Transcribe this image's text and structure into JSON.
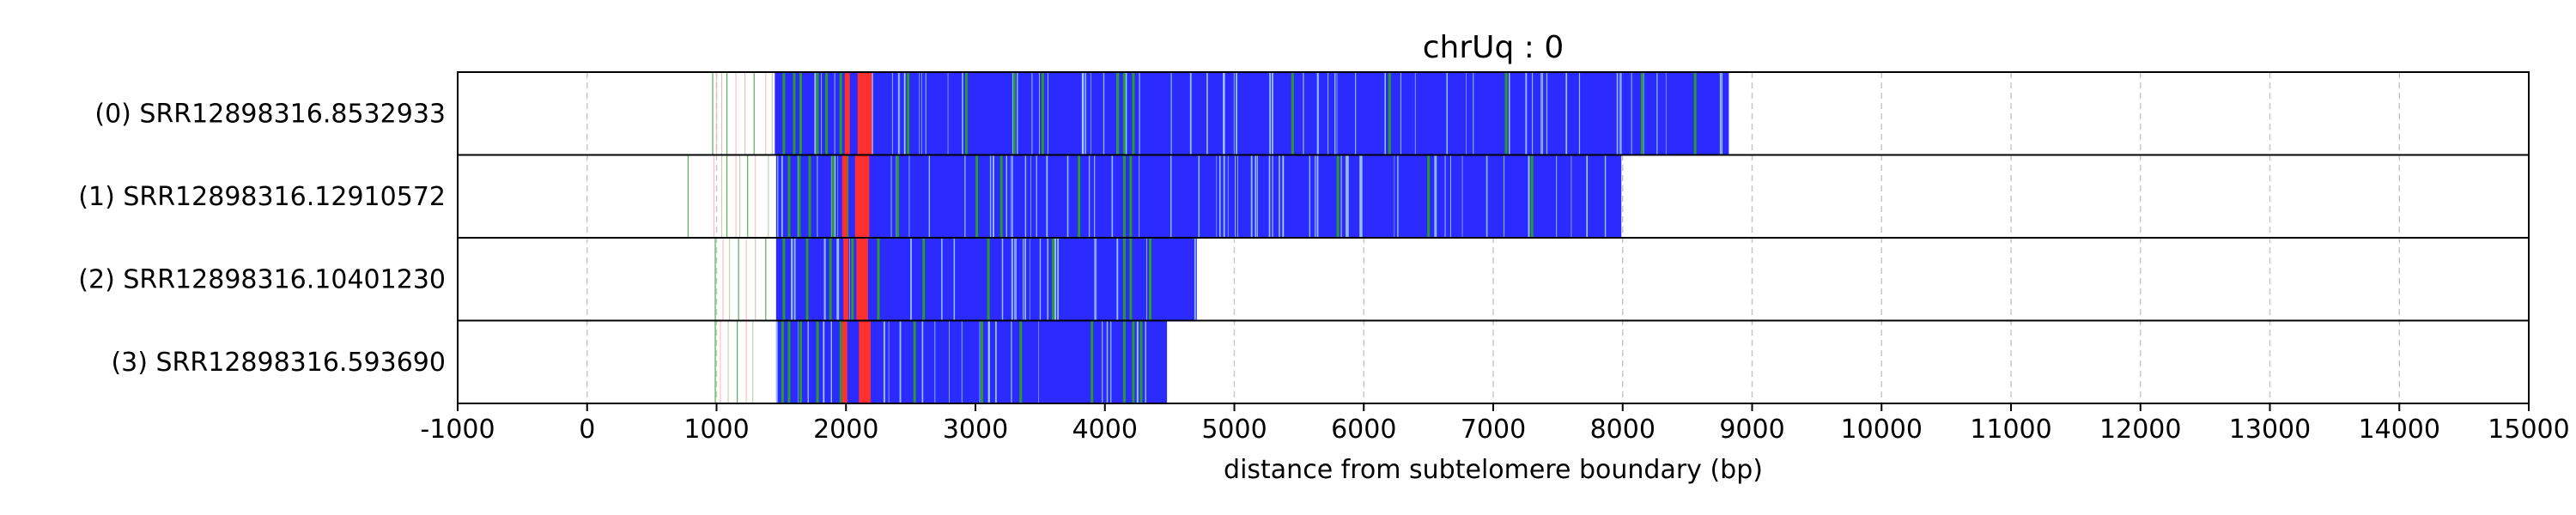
{
  "chart_data": {
    "type": "bar",
    "title": "chrUq : 0",
    "xlabel": "distance from subtelomere boundary (bp)",
    "ylabel": "",
    "xlim": [
      -1000,
      15000
    ],
    "xticks": [
      -1000,
      0,
      1000,
      2000,
      3000,
      4000,
      5000,
      6000,
      7000,
      8000,
      9000,
      10000,
      11000,
      12000,
      13000,
      14000,
      15000
    ],
    "grid": "vertical dashed at x ticks",
    "colors": {
      "main": "#2b2bff",
      "light": "#a8d8ff",
      "green": "#2a9a2a",
      "red": "#ff3030",
      "pink": "#ffb0b0"
    },
    "reads": [
      {
        "label": "(0) SRR12898316.8532933",
        "start": 1450,
        "end": 8820,
        "early_marks": [
          970,
          1000,
          1040,
          1080,
          1150,
          1220,
          1290,
          1380,
          1430
        ],
        "green_marks": [
          1520,
          1600,
          1650,
          1780,
          1850,
          1960,
          2100,
          2480,
          2930,
          3300,
          3520,
          4100,
          4150,
          4220,
          5450,
          6200,
          7100,
          8150,
          8560
        ],
        "red_bands": [
          [
            1990,
            2030
          ],
          [
            2090,
            2200
          ]
        ]
      },
      {
        "label": "(1) SRR12898316.12910572",
        "start": 1460,
        "end": 7990,
        "early_marks": [
          780,
          980,
          1040,
          1080,
          1150,
          1180,
          1240,
          1300,
          1400
        ],
        "green_marks": [
          1560,
          1640,
          1720,
          1900,
          2010,
          2400,
          3010,
          3200,
          3800,
          4150,
          4200,
          5800,
          6500,
          7300
        ],
        "red_bands": [
          [
            1970,
            2010
          ],
          [
            2070,
            2180
          ]
        ]
      },
      {
        "label": "(2) SRR12898316.10401230",
        "start": 1460,
        "end": 4710,
        "early_marks": [
          990,
          1050,
          1100,
          1170,
          1230,
          1300,
          1380
        ],
        "green_marks": [
          1520,
          1700,
          1880,
          2050,
          2250,
          2600,
          3100,
          3600,
          4150,
          4200,
          4350
        ],
        "red_bands": [
          [
            1980,
            2020
          ],
          [
            2080,
            2170
          ]
        ]
      },
      {
        "label": "(3) SRR12898316.593690",
        "start": 1460,
        "end": 4480,
        "early_marks": [
          990,
          1030,
          1090,
          1160,
          1230,
          1280
        ],
        "green_marks": [
          1510,
          1560,
          1650,
          1780,
          1960,
          2150,
          2530,
          3050,
          3350,
          3900,
          4150,
          4220,
          4280
        ],
        "red_bands": [
          [
            1970,
            2010
          ],
          [
            2100,
            2190
          ]
        ]
      }
    ]
  }
}
